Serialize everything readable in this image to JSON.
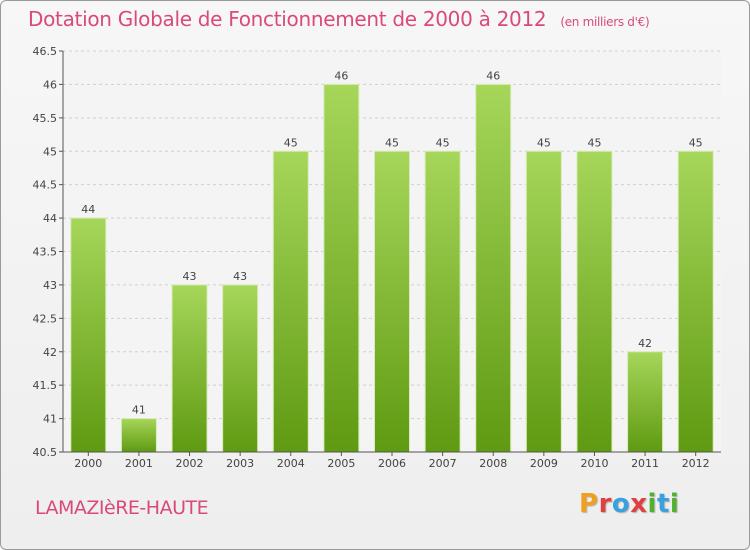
{
  "title": "Dotation Globale de Fonctionnement de 2000 à 2012",
  "subtitle": "(en milliers d'€)",
  "commune": "LAMAZIèRE-HAUTE",
  "logo": {
    "letters": [
      "P",
      "r",
      "o",
      "x",
      "i",
      "t",
      "i"
    ],
    "colors": [
      "#f0a020",
      "#e04040",
      "#3aa0e0",
      "#e04040",
      "#50b030",
      "#3aa0e0",
      "#50b030"
    ]
  },
  "colors": {
    "bar_top": "#a6d65a",
    "bar_bottom": "#5f9a12",
    "grid": "#d0d0d0",
    "accent": "#d94a7a"
  },
  "chart_data": {
    "type": "bar",
    "title": "Dotation Globale de Fonctionnement de 2000 à 2012",
    "xlabel": "",
    "ylabel": "",
    "categories": [
      "2000",
      "2001",
      "2002",
      "2003",
      "2004",
      "2005",
      "2006",
      "2007",
      "2008",
      "2009",
      "2010",
      "2011",
      "2012"
    ],
    "values": [
      44,
      41,
      43,
      43,
      45,
      46,
      45,
      45,
      46,
      45,
      45,
      42,
      45
    ],
    "ylim": [
      40.5,
      46.5
    ],
    "yticks": [
      "40.5",
      "41",
      "41.5",
      "42",
      "42.5",
      "43",
      "43.5",
      "44",
      "44.5",
      "45",
      "45.5",
      "46",
      "46.5"
    ],
    "grid": true
  }
}
